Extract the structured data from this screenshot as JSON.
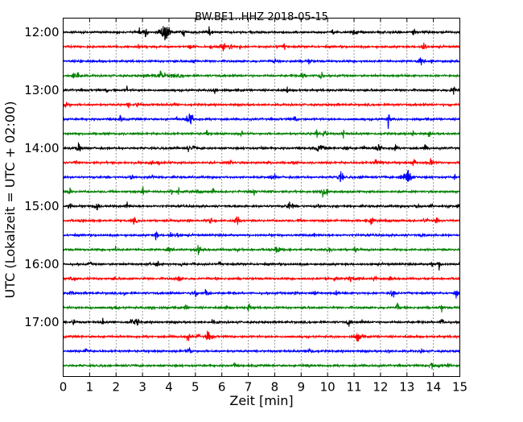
{
  "chart_data": {
    "type": "line",
    "chart_kind": "seismogram-dayplot",
    "title": "BW.BE1..HHZ 2018-05-15",
    "xlabel": "Zeit  [min]",
    "ylabel": "UTC (Lokalzeit = UTC + 02:00)",
    "xlim": [
      0,
      15
    ],
    "x_ticks": [
      "0",
      "1",
      "2",
      "3",
      "4",
      "5",
      "6",
      "7",
      "8",
      "9",
      "10",
      "11",
      "12",
      "13",
      "14",
      "15"
    ],
    "y_tick_labels": [
      "12:00",
      "13:00",
      "14:00",
      "15:00",
      "16:00",
      "17:00"
    ],
    "trace_start_times": [
      "12:00",
      "12:15",
      "12:30",
      "12:45",
      "13:00",
      "13:15",
      "13:30",
      "13:45",
      "14:00",
      "14:15",
      "14:30",
      "14:45",
      "15:00",
      "15:15",
      "15:30",
      "15:45",
      "16:00",
      "16:15",
      "16:30",
      "16:45",
      "17:00",
      "17:15",
      "17:30",
      "17:45"
    ],
    "trace_minutes": 15,
    "color_cycle": [
      "#000000",
      "#ff0000",
      "#0000ff",
      "#008000"
    ],
    "grid": {
      "x": "dotted-vertical",
      "y": false
    },
    "notable_events": [
      {
        "trace": "12:00",
        "minute": 3.85,
        "relative_amplitude": 1.0
      },
      {
        "trace": "14:30",
        "minute": 13.0,
        "relative_amplitude": 0.85
      },
      {
        "trace": "12:45",
        "minute": 3.7,
        "relative_amplitude": 0.45
      },
      {
        "trace": "14:00",
        "minute": 9.7,
        "relative_amplitude": 0.4
      },
      {
        "trace": "14:45",
        "minute": 9.8,
        "relative_amplitude": 0.35
      }
    ]
  }
}
